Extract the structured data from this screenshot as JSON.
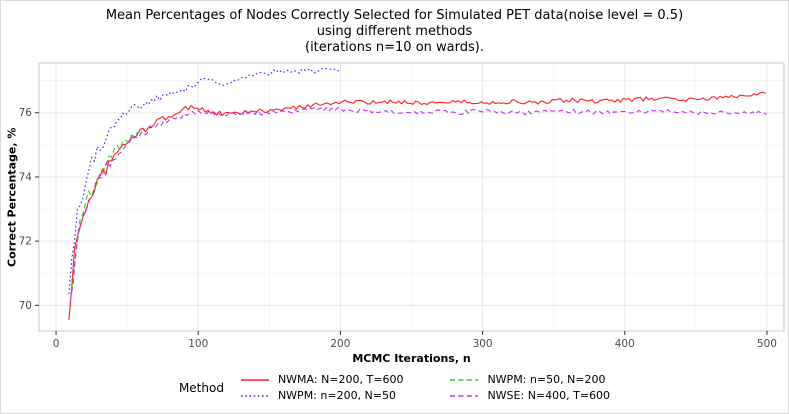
{
  "chart_data": {
    "type": "line",
    "title_lines": [
      "Mean Percentages of Nodes Correctly Selected for Simulated PET data(noise level = 0.5)",
      "using different methods",
      "(iterations n=10 on wards)."
    ],
    "xlabel": "MCMC Iterations, n",
    "ylabel": "Correct Percentage, %",
    "xlim": [
      -12,
      512
    ],
    "ylim": [
      69.2,
      77.55
    ],
    "xticks": [
      0,
      100,
      200,
      300,
      400,
      500
    ],
    "yticks": [
      70,
      72,
      74,
      76
    ],
    "x_minor": [
      50,
      150,
      250,
      350,
      450
    ],
    "y_minor": [
      71,
      73,
      75,
      77
    ],
    "grid": true,
    "legend_title": "Method",
    "legend_position": "bottom",
    "colors": {
      "panel_bg": "#ffffff",
      "panel_border": "#c8c8c8",
      "grid_major": "#e8e8e8",
      "grid_minor": "#f4f4f4",
      "tick_mark": "#333333",
      "tick_label": "#4d4d4d"
    },
    "series": [
      {
        "name": "NWMA: N=200, T=600",
        "color": "#ff1f1f",
        "linetype": "solid",
        "noise": 0.13,
        "points": [
          [
            9,
            69.5
          ],
          [
            12,
            71.3
          ],
          [
            16,
            72.4
          ],
          [
            20,
            72.9
          ],
          [
            25,
            73.5
          ],
          [
            30,
            73.9
          ],
          [
            36,
            74.3
          ],
          [
            42,
            74.7
          ],
          [
            50,
            75.1
          ],
          [
            58,
            75.35
          ],
          [
            66,
            75.6
          ],
          [
            75,
            75.8
          ],
          [
            85,
            76.0
          ],
          [
            95,
            76.2
          ],
          [
            100,
            76.15
          ],
          [
            110,
            76.0
          ],
          [
            120,
            75.95
          ],
          [
            130,
            76.0
          ],
          [
            145,
            76.05
          ],
          [
            160,
            76.1
          ],
          [
            175,
            76.2
          ],
          [
            190,
            76.3
          ],
          [
            205,
            76.35
          ],
          [
            220,
            76.3
          ],
          [
            240,
            76.35
          ],
          [
            260,
            76.3
          ],
          [
            280,
            76.35
          ],
          [
            300,
            76.3
          ],
          [
            320,
            76.35
          ],
          [
            340,
            76.3
          ],
          [
            360,
            76.4
          ],
          [
            380,
            76.35
          ],
          [
            400,
            76.4
          ],
          [
            425,
            76.45
          ],
          [
            450,
            76.4
          ],
          [
            475,
            76.5
          ],
          [
            500,
            76.65
          ]
        ]
      },
      {
        "name": "NWPM: n=200, N=50",
        "color": "#2525ff",
        "linetype": "dotted",
        "noise": 0.15,
        "points": [
          [
            9,
            70.1
          ],
          [
            12,
            71.8
          ],
          [
            16,
            73.0
          ],
          [
            20,
            73.7
          ],
          [
            25,
            74.4
          ],
          [
            30,
            74.9
          ],
          [
            36,
            75.3
          ],
          [
            42,
            75.6
          ],
          [
            50,
            76.0
          ],
          [
            58,
            76.2
          ],
          [
            66,
            76.35
          ],
          [
            75,
            76.5
          ],
          [
            85,
            76.6
          ],
          [
            95,
            76.8
          ],
          [
            105,
            77.1
          ],
          [
            115,
            76.9
          ],
          [
            125,
            77.0
          ],
          [
            135,
            77.1
          ],
          [
            145,
            77.2
          ],
          [
            155,
            77.3
          ],
          [
            165,
            77.25
          ],
          [
            175,
            77.3
          ],
          [
            185,
            77.3
          ],
          [
            195,
            77.35
          ],
          [
            200,
            77.3
          ]
        ]
      },
      {
        "name": "NWPM: n=50, N=200",
        "color": "#22cc22",
        "linetype": "dashed",
        "noise": 0.13,
        "points": [
          [
            11,
            70.4
          ],
          [
            14,
            71.9
          ],
          [
            18,
            72.8
          ],
          [
            22,
            73.3
          ],
          [
            27,
            73.8
          ],
          [
            32,
            74.2
          ],
          [
            38,
            74.6
          ],
          [
            44,
            74.9
          ],
          [
            50,
            75.15
          ],
          [
            56,
            75.3
          ],
          [
            62,
            75.45
          ]
        ]
      },
      {
        "name": "NWSE: N=400, T=600",
        "color": "#bb33ee",
        "linetype": "dashed",
        "noise": 0.13,
        "points": [
          [
            10,
            69.9
          ],
          [
            13,
            71.4
          ],
          [
            17,
            72.5
          ],
          [
            21,
            73.0
          ],
          [
            26,
            73.6
          ],
          [
            31,
            74.0
          ],
          [
            37,
            74.4
          ],
          [
            43,
            74.75
          ],
          [
            50,
            75.05
          ],
          [
            58,
            75.3
          ],
          [
            66,
            75.5
          ],
          [
            75,
            75.7
          ],
          [
            85,
            75.85
          ],
          [
            95,
            76.0
          ],
          [
            105,
            76.05
          ],
          [
            115,
            75.95
          ],
          [
            125,
            75.95
          ],
          [
            135,
            76.0
          ],
          [
            150,
            76.0
          ],
          [
            165,
            76.05
          ],
          [
            180,
            76.1
          ],
          [
            200,
            76.1
          ],
          [
            220,
            76.05
          ],
          [
            240,
            76.0
          ],
          [
            260,
            76.05
          ],
          [
            280,
            76.0
          ],
          [
            300,
            76.05
          ],
          [
            320,
            76.0
          ],
          [
            340,
            76.0
          ],
          [
            360,
            76.05
          ],
          [
            380,
            76.0
          ],
          [
            400,
            76.0
          ],
          [
            425,
            76.05
          ],
          [
            450,
            76.0
          ],
          [
            475,
            76.0
          ],
          [
            500,
            76.0
          ]
        ]
      }
    ]
  }
}
